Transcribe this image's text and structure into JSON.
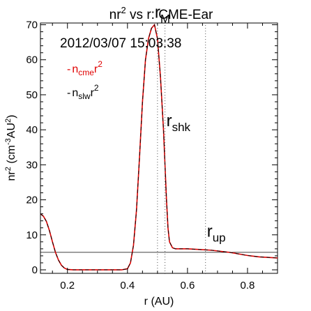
{
  "chart_data": {
    "type": "line",
    "title_parts": {
      "base": "nr",
      "sup": "2",
      "rest": " vs r: CME-Ear"
    },
    "timestamp": "2012/03/07 15:03:38",
    "xlabel": "r (AU)",
    "ylabel_parts": {
      "a": "nr",
      "sup1": "2",
      "b": " (cm",
      "sup2": "-3",
      "c": "AU",
      "sup3": "2",
      "d": ")"
    },
    "xlim": [
      0.11,
      0.9
    ],
    "ylim": [
      -1,
      70.5
    ],
    "xticks": [
      0.2,
      0.4,
      0.6,
      0.8
    ],
    "xtick_labels": [
      "0.2",
      "0.4",
      "0.6",
      "0.8"
    ],
    "yticks": [
      0,
      10,
      20,
      30,
      40,
      50,
      60,
      70
    ],
    "ytick_labels": [
      "0",
      "10",
      "20",
      "30",
      "40",
      "50",
      "60",
      "70"
    ],
    "legend": [
      {
        "base": "n",
        "sub": "cme",
        "rest": "r",
        "sup": "2",
        "color": "#e00000"
      },
      {
        "base": "n",
        "sub": "slw",
        "rest": "r",
        "sup": "2",
        "color": "#000000"
      }
    ],
    "series": [
      {
        "color": "#e00000",
        "x": [
          0.11,
          0.12,
          0.13,
          0.14,
          0.15,
          0.16,
          0.17,
          0.18,
          0.19,
          0.2,
          0.22,
          0.25,
          0.3,
          0.35,
          0.38,
          0.4,
          0.41,
          0.42,
          0.43,
          0.44,
          0.45,
          0.46,
          0.47,
          0.48,
          0.49,
          0.5,
          0.51,
          0.52,
          0.525,
          0.53,
          0.535,
          0.54,
          0.55,
          0.56,
          0.58,
          0.6,
          0.62,
          0.64,
          0.66,
          0.68,
          0.7,
          0.72,
          0.74,
          0.76,
          0.78,
          0.8,
          0.82,
          0.84,
          0.86,
          0.88,
          0.9
        ],
        "y": [
          16.0,
          15.3,
          13.8,
          11.2,
          8.0,
          5.0,
          2.8,
          1.3,
          0.5,
          0.1,
          0.0,
          0.0,
          0.0,
          0.0,
          0.0,
          0.3,
          2.0,
          7.0,
          17.0,
          32.0,
          48.0,
          60.0,
          66.0,
          69.0,
          70.0,
          66.0,
          55.0,
          40.0,
          30.0,
          20.0,
          12.0,
          8.0,
          6.3,
          6.0,
          6.0,
          6.0,
          5.9,
          5.8,
          5.7,
          5.6,
          5.4,
          5.2,
          5.0,
          4.7,
          4.4,
          4.1,
          3.9,
          3.7,
          3.6,
          3.5,
          3.4
        ]
      },
      {
        "color": "#000000",
        "x": [
          0.11,
          0.12,
          0.13,
          0.14,
          0.15,
          0.16,
          0.17,
          0.18,
          0.19,
          0.2,
          0.22,
          0.25,
          0.3,
          0.35,
          0.38,
          0.4,
          0.41,
          0.42,
          0.43,
          0.44,
          0.45,
          0.46,
          0.47,
          0.48,
          0.49,
          0.5,
          0.51,
          0.52,
          0.525,
          0.53,
          0.535,
          0.54,
          0.55,
          0.56,
          0.58,
          0.6,
          0.62,
          0.64,
          0.66,
          0.68,
          0.7,
          0.72,
          0.74,
          0.76,
          0.78,
          0.8,
          0.82,
          0.84,
          0.86,
          0.88,
          0.9
        ],
        "y": [
          16.0,
          15.3,
          13.8,
          11.2,
          8.0,
          5.0,
          2.8,
          1.3,
          0.5,
          0.1,
          0.0,
          0.0,
          0.0,
          0.0,
          0.0,
          0.3,
          2.0,
          7.0,
          17.0,
          32.0,
          48.0,
          60.0,
          66.0,
          69.0,
          70.0,
          66.0,
          55.0,
          40.0,
          30.0,
          20.0,
          12.0,
          8.0,
          6.3,
          6.0,
          6.0,
          6.0,
          5.9,
          5.8,
          5.7,
          5.6,
          5.4,
          5.2,
          5.0,
          4.7,
          4.4,
          4.1,
          3.9,
          3.7,
          3.6,
          3.5,
          3.4
        ]
      }
    ],
    "hline": {
      "y": 5.0
    },
    "markers": [
      {
        "x": 0.5,
        "label": "r",
        "sub": "M",
        "label_y": 72
      },
      {
        "x": 0.525,
        "label": "r",
        "sub": "shk",
        "label_y": 41
      },
      {
        "x": 0.66,
        "label": "r",
        "sub": "up",
        "label_y": 9.5
      }
    ],
    "grid": false
  }
}
